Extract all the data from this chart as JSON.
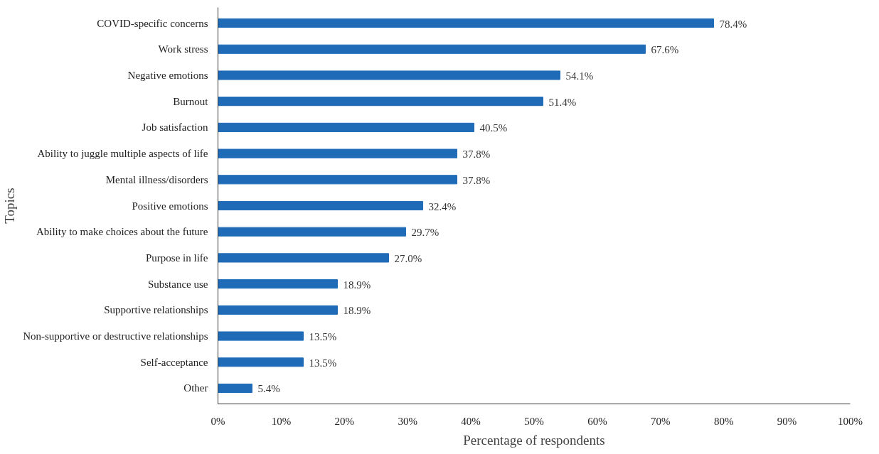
{
  "chart_data": {
    "type": "bar",
    "orientation": "horizontal",
    "xlabel": "Percentage of respondents",
    "ylabel": "Topics",
    "categories": [
      "COVID-specific concerns",
      "Work stress",
      "Negative emotions",
      "Burnout",
      "Job satisfaction",
      "Ability to juggle multiple aspects of life",
      "Mental illness/disorders",
      "Positive emotions",
      "Ability to make choices about the future",
      "Purpose in life",
      "Substance use",
      "Supportive relationships",
      "Non-supportive or destructive relationships",
      "Self-acceptance",
      "Other"
    ],
    "values": [
      78.4,
      67.6,
      54.1,
      51.4,
      40.5,
      37.8,
      37.8,
      32.4,
      29.7,
      27.0,
      18.9,
      18.9,
      13.5,
      13.5,
      5.4
    ],
    "value_labels": [
      "78.4%",
      "67.6%",
      "54.1%",
      "51.4%",
      "40.5%",
      "37.8%",
      "37.8%",
      "32.4%",
      "29.7%",
      "27.0%",
      "18.9%",
      "18.9%",
      "13.5%",
      "13.5%",
      "5.4%"
    ],
    "color": "#1f6bb8",
    "xlim": [
      0,
      100
    ],
    "xticks": [
      {
        "value": 0,
        "label": "0%"
      },
      {
        "value": 10,
        "label": "10%"
      },
      {
        "value": 20,
        "label": "20%"
      },
      {
        "value": 30,
        "label": "30%"
      },
      {
        "value": 40,
        "label": "40%"
      },
      {
        "value": 50,
        "label": "50%"
      },
      {
        "value": 60,
        "label": "60%"
      },
      {
        "value": 70,
        "label": "70%"
      },
      {
        "value": 80,
        "label": "80%"
      },
      {
        "value": 90,
        "label": "90%"
      },
      {
        "value": 100,
        "label": "100%"
      }
    ],
    "grid": false
  }
}
